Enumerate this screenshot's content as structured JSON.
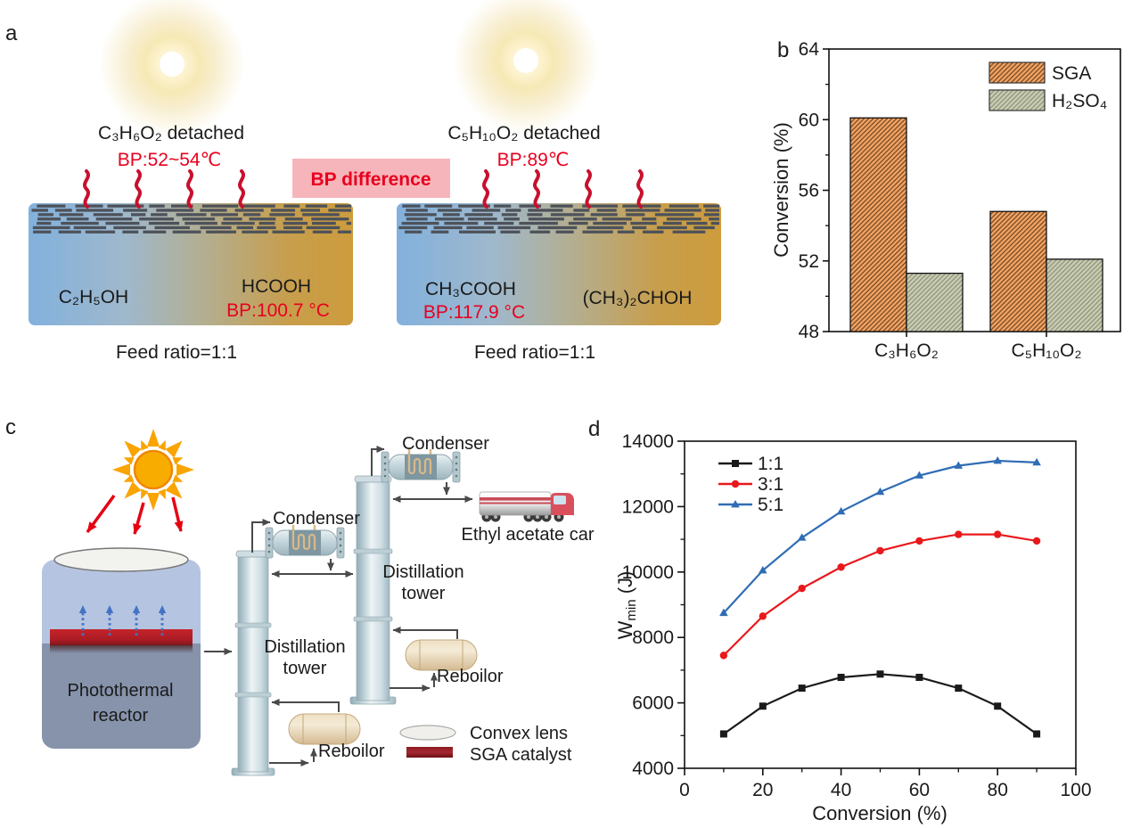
{
  "panel_labels": {
    "a": "a",
    "b": "b",
    "c": "c",
    "d": "d"
  },
  "panel_a": {
    "bp_difference": "BP difference",
    "left": {
      "detached": "C₃H₆O₂ detached",
      "bp_detached": "BP:52~54℃",
      "liquid_left": "C₂H₅OH",
      "liquid_right": "HCOOH",
      "liquid_right_bp": "BP:100.7 °C",
      "feed_ratio": "Feed ratio=1:1"
    },
    "right": {
      "detached": "C₅H₁₀O₂ detached",
      "bp_detached": "BP:89℃",
      "liquid_left": "CH₃COOH",
      "liquid_left_bp": "BP:117.9 °C",
      "liquid_right": "(CH₃)₂CHOH",
      "feed_ratio": "Feed ratio=1:1"
    },
    "colors": {
      "accent_red": "#e8001f",
      "pink_box": "#f6b5ba",
      "squiggle_red": "#c8102e",
      "pool_blue": "#82b1dd",
      "pool_gold": "#cd9c3c",
      "layer_dark": "#4d525a"
    }
  },
  "panel_c": {
    "reactor": {
      "line1": "Photothermal",
      "line2": "reactor"
    },
    "distillation_tower": {
      "line1": "Distillation",
      "line2": "tower"
    },
    "condenser_label": "Condenser",
    "reboiler_label": "Reboilor",
    "truck_label": "Ethyl acetate car",
    "legend": {
      "convex_lens": "Convex lens",
      "sga_catalyst": "SGA catalyst"
    }
  },
  "chart_data": [
    {
      "id": "panel_b",
      "type": "bar",
      "categories": [
        "C₃H₆O₂",
        "C₅H₁₀O₂"
      ],
      "series": [
        {
          "name": "SGA",
          "values": [
            60.1,
            54.8
          ],
          "fill": "#f0a264",
          "hatch": "#6b4019"
        },
        {
          "name": "H₂SO₄",
          "values": [
            51.3,
            52.1
          ],
          "fill": "#c9ccb2",
          "hatch": "#878d74"
        }
      ],
      "ylabel": "Conversion (%)",
      "ylim": [
        48,
        64
      ],
      "yticks": [
        48,
        52,
        56,
        60,
        64
      ],
      "yticks_minor": [
        50,
        54,
        58,
        62
      ],
      "grid": false,
      "legend_position": "top-right"
    },
    {
      "id": "panel_d",
      "type": "line",
      "x": [
        10,
        20,
        30,
        40,
        50,
        60,
        70,
        80,
        90
      ],
      "series": [
        {
          "name": "1:1",
          "color": "#1a1a1a",
          "marker": "square",
          "values": [
            5050,
            5900,
            6450,
            6780,
            6880,
            6780,
            6450,
            5900,
            5050
          ]
        },
        {
          "name": "3:1",
          "color": "#e8191c",
          "marker": "circle",
          "values": [
            7450,
            8650,
            9500,
            10150,
            10650,
            10950,
            11150,
            11150,
            10950
          ]
        },
        {
          "name": "5:1",
          "color": "#2f6db5",
          "marker": "triangle",
          "values": [
            8750,
            10050,
            11050,
            11850,
            12450,
            12950,
            13250,
            13400,
            13350
          ]
        }
      ],
      "xlabel": "Conversion (%)",
      "ylabel_main": "W",
      "ylabel_sub": "min",
      "ylabel_unit": " (J)",
      "xlim": [
        0,
        100
      ],
      "ylim": [
        4000,
        14000
      ],
      "xticks": [
        0,
        20,
        40,
        60,
        80,
        100
      ],
      "xticks_minor": [
        10,
        30,
        50,
        70,
        90
      ],
      "yticks": [
        4000,
        6000,
        8000,
        10000,
        12000,
        14000
      ],
      "yticks_minor": [
        5000,
        7000,
        9000,
        11000,
        13000
      ],
      "grid": false,
      "legend_position": "top-left"
    }
  ]
}
